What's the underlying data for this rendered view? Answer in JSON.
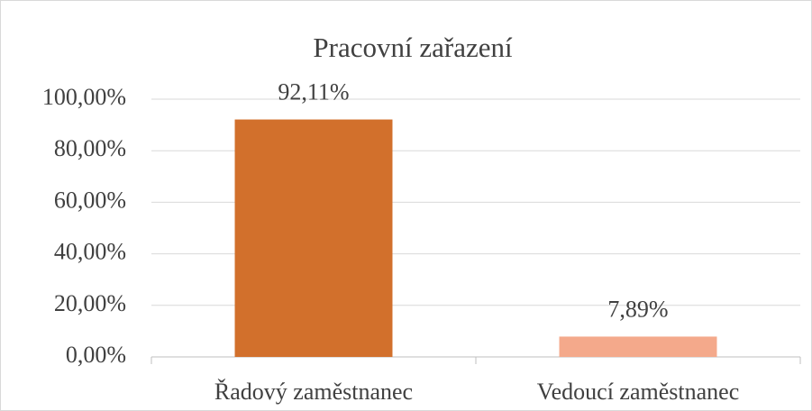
{
  "chart_data": {
    "type": "bar",
    "title": "Pracovní zařazení",
    "categories": [
      "Řadový zaměstnanec",
      "Vedoucí zaměstnanec"
    ],
    "values": [
      92.11,
      7.89
    ],
    "value_labels": [
      "92,11%",
      "7,89%"
    ],
    "colors": [
      "#d2702c",
      "#f4a98b"
    ],
    "ylim": [
      0,
      100
    ],
    "yticks": [
      {
        "value": 0,
        "label": "0,00%"
      },
      {
        "value": 20,
        "label": "20,00%"
      },
      {
        "value": 40,
        "label": "40,00%"
      },
      {
        "value": 60,
        "label": "60,00%"
      },
      {
        "value": 80,
        "label": "80,00%"
      },
      {
        "value": 100,
        "label": "100,00%"
      }
    ],
    "grid": true
  }
}
